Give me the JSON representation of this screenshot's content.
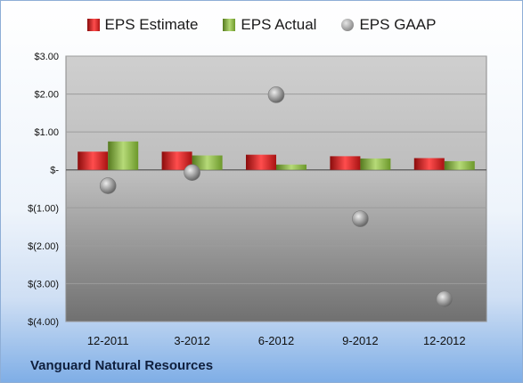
{
  "chart_data": {
    "type": "bar",
    "categories": [
      "12-2011",
      "3-2012",
      "6-2012",
      "9-2012",
      "12-2012"
    ],
    "series": [
      {
        "name": "EPS Estimate",
        "type": "bar",
        "color": "#e02020",
        "values": [
          0.48,
          0.48,
          0.4,
          0.36,
          0.31
        ]
      },
      {
        "name": "EPS Actual",
        "type": "bar",
        "color": "#8cbf4a",
        "values": [
          0.75,
          0.38,
          0.14,
          0.3,
          0.23
        ]
      },
      {
        "name": "EPS GAAP",
        "type": "scatter",
        "color": "#a8a8a8",
        "values": [
          -0.42,
          -0.07,
          1.98,
          -1.29,
          -3.41
        ]
      }
    ],
    "yticks": [
      "$(4.00)",
      "$(3.00)",
      "$(2.00)",
      "$(1.00)",
      "$-",
      "$1.00",
      "$2.00",
      "$3.00"
    ],
    "ytick_values": [
      -4,
      -3,
      -2,
      -1,
      0,
      1,
      2,
      3
    ],
    "ylim": [
      -4,
      3
    ],
    "grid": true,
    "legend": "top"
  },
  "legend": {
    "estimate": "EPS Estimate",
    "actual": "EPS Actual",
    "gaap": "EPS GAAP"
  },
  "company": "Vanguard Natural Resources"
}
